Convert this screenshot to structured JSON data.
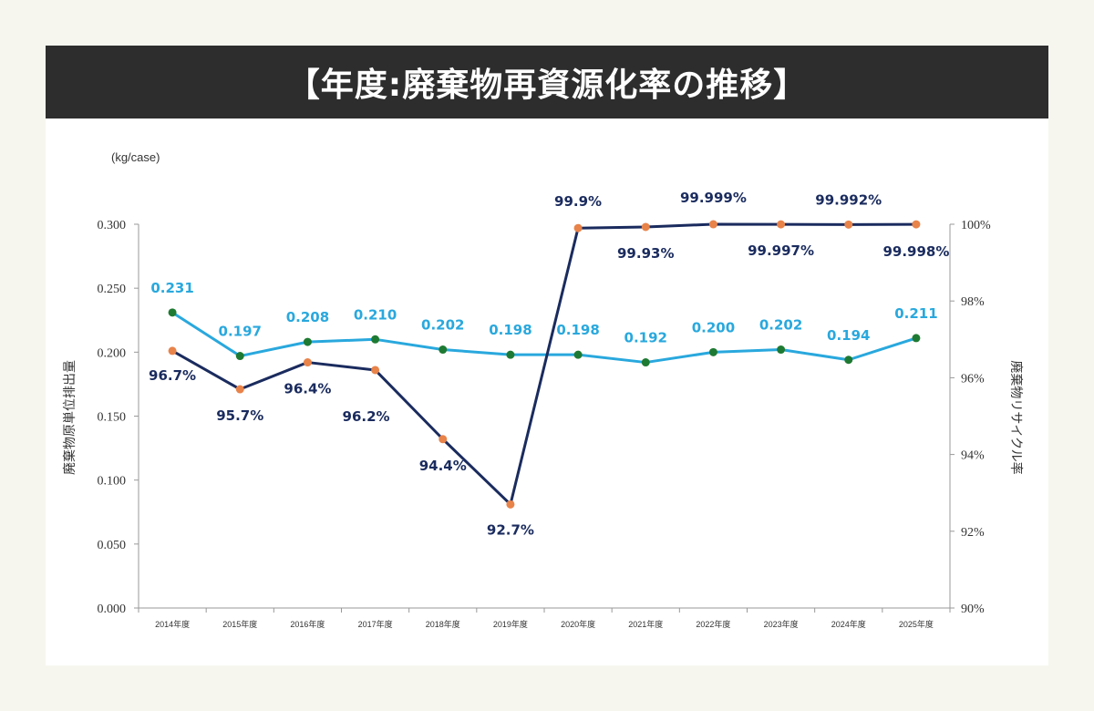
{
  "title": "【年度:廃棄物再資源化率の推移】",
  "chart_data": {
    "type": "line",
    "unit_label": "(kg/case)",
    "ylabel_left": "廃棄物原単位排出量",
    "ylabel_right": "廃棄物リサイクル率",
    "categories": [
      "2014年度",
      "2015年度",
      "2016年度",
      "2017年度",
      "2018年度",
      "2019年度",
      "2020年度",
      "2021年度",
      "2022年度",
      "2023年度",
      "2024年度",
      "2025年度"
    ],
    "yticks_left": [
      "0.000",
      "0.050",
      "0.100",
      "0.150",
      "0.200",
      "0.250",
      "0.300"
    ],
    "yticks_right": [
      "90%",
      "92%",
      "94%",
      "96%",
      "98%",
      "100%"
    ],
    "ylim_left": [
      0,
      0.3
    ],
    "ylim_right": [
      90,
      100
    ],
    "series": [
      {
        "axis": "left",
        "values": [
          0.231,
          0.197,
          0.208,
          0.21,
          0.202,
          0.198,
          0.198,
          0.192,
          0.2,
          0.202,
          0.194,
          0.211
        ],
        "labels": [
          "0.231",
          "0.197",
          "0.208",
          "0.210",
          "0.202",
          "0.198",
          "0.198",
          "0.192",
          "0.200",
          "0.202",
          "0.194",
          "0.211"
        ],
        "line_color": "#29a8dd",
        "marker_color": "#1e7a32"
      },
      {
        "axis": "right",
        "values": [
          96.7,
          95.7,
          96.4,
          96.2,
          94.4,
          92.7,
          99.9,
          99.93,
          99.999,
          99.997,
          99.992,
          99.998
        ],
        "labels": [
          "96.7%",
          "95.7%",
          "96.4%",
          "96.2%",
          "94.4%",
          "92.7%",
          "99.9%",
          "99.93%",
          "99.999%",
          "99.997%",
          "99.992%",
          "99.998%"
        ],
        "line_color": "#1a2b5e",
        "marker_color": "#e8834a"
      }
    ]
  }
}
